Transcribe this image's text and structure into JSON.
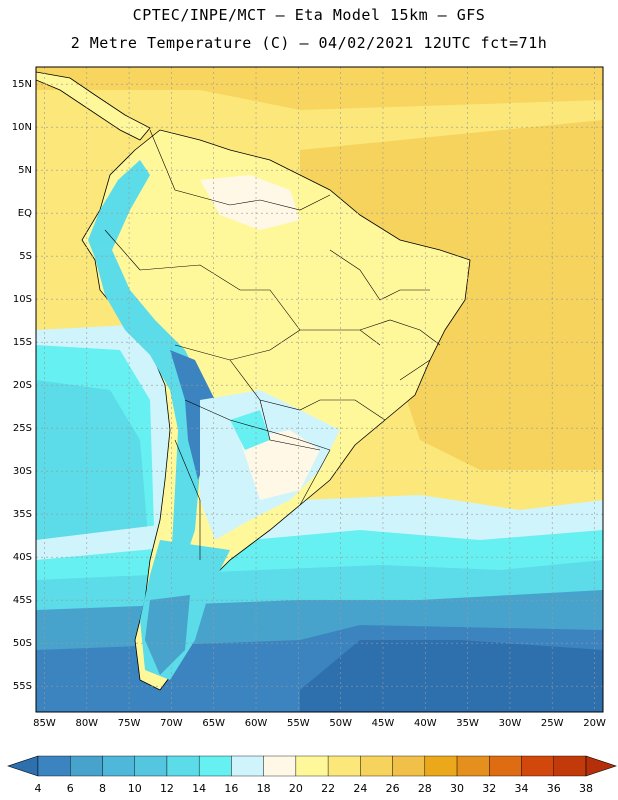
{
  "header": {
    "line1": "CPTEC/INPE/MCT –  Eta Model 15km – GFS",
    "line2": "2 Metre Temperature (C) – 04/02/2021 12UTC fct=71h"
  },
  "axes": {
    "lat_labels": [
      "15N",
      "10N",
      "5N",
      "EQ",
      "5S",
      "10S",
      "15S",
      "20S",
      "25S",
      "30S",
      "35S",
      "40S",
      "45S",
      "50S",
      "55S"
    ],
    "lat_values": [
      15,
      10,
      5,
      0,
      -5,
      -10,
      -15,
      -20,
      -25,
      -30,
      -35,
      -40,
      -45,
      -50,
      -55
    ],
    "lon_labels": [
      "85W",
      "80W",
      "75W",
      "70W",
      "65W",
      "60W",
      "55W",
      "50W",
      "45W",
      "40W",
      "35W",
      "30W",
      "25W",
      "20W"
    ],
    "lon_values": [
      -85,
      -80,
      -75,
      -70,
      -65,
      -60,
      -55,
      -50,
      -45,
      -40,
      -35,
      -30,
      -25,
      -20
    ],
    "lat_range": [
      -58,
      17
    ],
    "lon_range": [
      -86,
      -19
    ]
  },
  "colorbar": {
    "levels": [
      "4",
      "6",
      "8",
      "10",
      "12",
      "14",
      "16",
      "18",
      "20",
      "22",
      "24",
      "26",
      "28",
      "30",
      "32",
      "34",
      "36",
      "38"
    ],
    "colors": [
      "#2e6fae",
      "#3c84bf",
      "#47a3cc",
      "#4fb7d9",
      "#54c6e0",
      "#5cdbe8",
      "#66f0f2",
      "#d0f4fc",
      "#fff8e6",
      "#fff89a",
      "#fbe77a",
      "#f6d35c",
      "#f0c048",
      "#eaa81a",
      "#e5901e",
      "#de6c12",
      "#d2480c",
      "#c23a0a",
      "#b5300a"
    ]
  },
  "map_regions": {
    "ocean_warm": "#f6d35c",
    "ocean_mild": "#fbe77a",
    "continent_warm": "#fff89a",
    "highland_cool": "#fff8e6",
    "south_cool": "#d0f4fc",
    "south_cold": "#5cdbe8",
    "far_south": "#3c84bf",
    "polar_sea": "#2e6fae"
  }
}
